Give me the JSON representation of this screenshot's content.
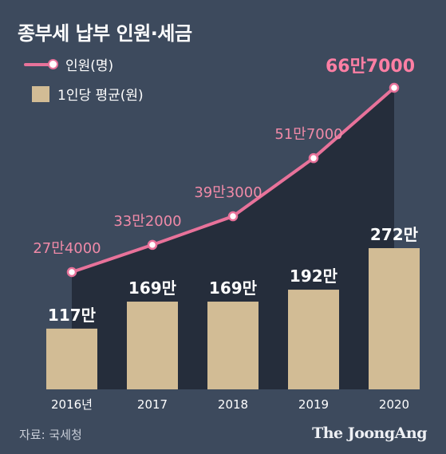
{
  "title": "종부세 납부 인원·세금",
  "legend": {
    "line_label": "인원(명)",
    "bar_label": "1인당 평균(원)"
  },
  "source": "자료: 국세청",
  "brand": "The JoongAng",
  "colors": {
    "background": "#3d4a5d",
    "area": "#252d3b",
    "bar": "#d2bc95",
    "line": "#e8729a",
    "bar_label": "#ffffff",
    "line_label": "#f08aa8",
    "highlight_label": "#ff7fa4",
    "axis_text": "#ffffff"
  },
  "chart_data": {
    "type": "bar+line",
    "categories": [
      "2016년",
      "2017",
      "2018",
      "2019",
      "2020"
    ],
    "bars": {
      "name": "1인당 평균(원)",
      "values": [
        117,
        169,
        169,
        192,
        272
      ],
      "labels": [
        "117만",
        "169만",
        "169만",
        "192만",
        "272만"
      ]
    },
    "line": {
      "name": "인원(명)",
      "values": [
        274000,
        332000,
        393000,
        517000,
        667000
      ],
      "labels": [
        "27만4000",
        "33만2000",
        "39만3000",
        "51만7000",
        "66만7000"
      ]
    }
  }
}
